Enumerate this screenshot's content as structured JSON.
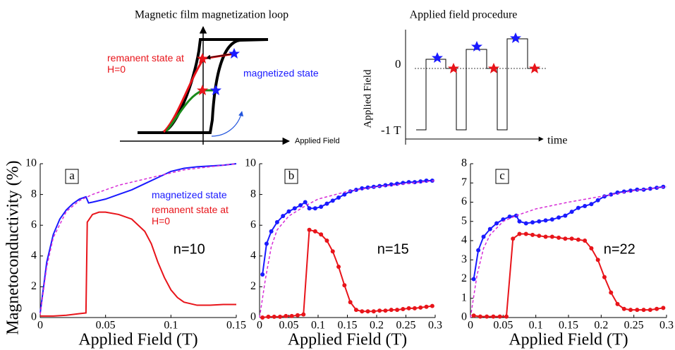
{
  "diagrams": {
    "loop": {
      "title": "Magnetic film magnetization loop",
      "remanent": "remanent state at H=0",
      "magnetized": "magnetized state",
      "x_axis": "Applied Field"
    },
    "procedure": {
      "title": "Applied field procedure",
      "zero": "0",
      "minus": "-1 T",
      "y_axis": "Applied Field",
      "x_axis": "time"
    }
  },
  "chart_data": [
    {
      "type": "line",
      "label": "a",
      "annotation": "n=10",
      "xlabel": "Applied Field (T)",
      "ylabel": "Magnetoconductivity (%)",
      "xlim": [
        0,
        0.15
      ],
      "ylim": [
        0,
        10
      ],
      "xticks": [
        0,
        0.05,
        0.1,
        0.15
      ],
      "yticks": [
        0,
        2,
        4,
        6,
        8,
        10
      ],
      "series": [
        {
          "name": "magnetized state",
          "color": "#1a1aff",
          "x": [
            0,
            0.005,
            0.01,
            0.015,
            0.02,
            0.025,
            0.03,
            0.035,
            0.037,
            0.04,
            0.05,
            0.06,
            0.07,
            0.08,
            0.09,
            0.1,
            0.11,
            0.12,
            0.13,
            0.14,
            0.15
          ],
          "values": [
            0.3,
            3.6,
            5.4,
            6.4,
            7.0,
            7.4,
            7.7,
            7.85,
            7.45,
            7.5,
            7.7,
            8.0,
            8.3,
            8.7,
            9.1,
            9.5,
            9.7,
            9.8,
            9.85,
            9.9,
            10.0
          ]
        },
        {
          "name": "remanent state at H=0",
          "color": "#e8141a",
          "x": [
            0,
            0.01,
            0.02,
            0.03,
            0.035,
            0.036,
            0.04,
            0.045,
            0.05,
            0.06,
            0.07,
            0.08,
            0.085,
            0.09,
            0.095,
            0.1,
            0.105,
            0.11,
            0.12,
            0.13,
            0.14,
            0.15
          ],
          "values": [
            0.1,
            0.1,
            0.15,
            0.25,
            0.3,
            6.2,
            6.7,
            6.85,
            6.85,
            6.7,
            6.4,
            5.6,
            4.8,
            3.6,
            2.6,
            1.8,
            1.3,
            1.0,
            0.8,
            0.8,
            0.85,
            0.85
          ]
        },
        {
          "color": "#d62bd6",
          "dash": true,
          "x": [
            0,
            0.005,
            0.01,
            0.02,
            0.03,
            0.04,
            0.05,
            0.06,
            0.07,
            0.08,
            0.09,
            0.1,
            0.11,
            0.12,
            0.13,
            0.14,
            0.15
          ],
          "values": [
            0.2,
            3.3,
            5.2,
            6.9,
            7.6,
            8.0,
            8.3,
            8.6,
            8.8,
            9.0,
            9.2,
            9.4,
            9.6,
            9.7,
            9.8,
            9.9,
            10.0
          ]
        }
      ]
    },
    {
      "type": "line",
      "label": "b",
      "annotation": "n=15",
      "xlabel": "Applied Field (T)",
      "xlim": [
        0,
        0.3
      ],
      "ylim": [
        0,
        10
      ],
      "xticks": [
        0,
        0.05,
        0.1,
        0.15,
        0.2,
        0.25,
        0.3
      ],
      "yticks": [
        0,
        2,
        4,
        6,
        8,
        10
      ],
      "series": [
        {
          "color": "#1a1aff",
          "markers": true,
          "x": [
            0.005,
            0.012,
            0.02,
            0.03,
            0.04,
            0.05,
            0.06,
            0.07,
            0.078,
            0.085,
            0.095,
            0.105,
            0.115,
            0.125,
            0.135,
            0.145,
            0.155,
            0.165,
            0.175,
            0.185,
            0.195,
            0.205,
            0.215,
            0.225,
            0.235,
            0.245,
            0.255,
            0.265,
            0.275,
            0.285,
            0.295
          ],
          "values": [
            2.8,
            4.8,
            5.6,
            6.2,
            6.6,
            6.9,
            7.1,
            7.3,
            7.5,
            7.1,
            7.1,
            7.2,
            7.4,
            7.6,
            7.8,
            8.0,
            8.2,
            8.3,
            8.4,
            8.45,
            8.5,
            8.55,
            8.6,
            8.65,
            8.7,
            8.75,
            8.8,
            8.8,
            8.85,
            8.9,
            8.9
          ]
        },
        {
          "color": "#e8141a",
          "markers": true,
          "x": [
            0.005,
            0.015,
            0.025,
            0.035,
            0.045,
            0.055,
            0.065,
            0.075,
            0.085,
            0.095,
            0.105,
            0.115,
            0.125,
            0.135,
            0.145,
            0.155,
            0.165,
            0.175,
            0.185,
            0.195,
            0.205,
            0.215,
            0.225,
            0.235,
            0.245,
            0.255,
            0.265,
            0.275,
            0.285,
            0.295
          ],
          "values": [
            0,
            0.05,
            0.05,
            0.05,
            0.1,
            0.1,
            0.15,
            0.2,
            5.7,
            5.6,
            5.4,
            5.0,
            4.3,
            3.3,
            2.1,
            1.0,
            0.5,
            0.4,
            0.4,
            0.4,
            0.45,
            0.45,
            0.5,
            0.5,
            0.55,
            0.6,
            0.6,
            0.65,
            0.7,
            0.75
          ]
        },
        {
          "color": "#d62bd6",
          "dash": true,
          "x": [
            0,
            0.01,
            0.02,
            0.03,
            0.05,
            0.08,
            0.1,
            0.15,
            0.2,
            0.25,
            0.3
          ],
          "values": [
            0,
            2.5,
            4.6,
            5.7,
            6.6,
            7.3,
            7.7,
            8.2,
            8.5,
            8.7,
            8.9
          ]
        }
      ]
    },
    {
      "type": "line",
      "label": "c",
      "annotation": "n=22",
      "xlabel": "Applied Field (T)",
      "xlim": [
        0,
        0.3
      ],
      "ylim": [
        0,
        8
      ],
      "xticks": [
        0,
        0.05,
        0.1,
        0.15,
        0.2,
        0.25,
        0.3
      ],
      "yticks": [
        0,
        1,
        2,
        3,
        4,
        5,
        6,
        7,
        8
      ],
      "series": [
        {
          "color": "#1a1aff",
          "markers": true,
          "x": [
            0.005,
            0.012,
            0.02,
            0.03,
            0.04,
            0.05,
            0.06,
            0.07,
            0.075,
            0.085,
            0.095,
            0.105,
            0.115,
            0.125,
            0.135,
            0.145,
            0.155,
            0.165,
            0.175,
            0.185,
            0.195,
            0.205,
            0.215,
            0.225,
            0.235,
            0.245,
            0.255,
            0.265,
            0.275,
            0.285,
            0.295
          ],
          "values": [
            2.0,
            3.5,
            4.2,
            4.6,
            4.9,
            5.1,
            5.25,
            5.3,
            5.0,
            4.9,
            4.95,
            5.0,
            5.05,
            5.1,
            5.2,
            5.3,
            5.5,
            5.7,
            5.8,
            5.9,
            6.1,
            6.3,
            6.4,
            6.5,
            6.55,
            6.6,
            6.65,
            6.65,
            6.7,
            6.75,
            6.8
          ]
        },
        {
          "color": "#e8141a",
          "markers": true,
          "x": [
            0.005,
            0.015,
            0.025,
            0.035,
            0.045,
            0.055,
            0.065,
            0.075,
            0.085,
            0.095,
            0.105,
            0.115,
            0.125,
            0.135,
            0.145,
            0.155,
            0.165,
            0.175,
            0.185,
            0.195,
            0.205,
            0.215,
            0.225,
            0.235,
            0.245,
            0.255,
            0.265,
            0.275,
            0.285,
            0.295
          ],
          "values": [
            0.1,
            0.05,
            0.05,
            0.05,
            0.05,
            0.05,
            4.1,
            4.35,
            4.35,
            4.3,
            4.25,
            4.2,
            4.2,
            4.15,
            4.1,
            4.1,
            4.05,
            4.0,
            3.6,
            3.0,
            2.1,
            1.3,
            0.7,
            0.45,
            0.4,
            0.4,
            0.4,
            0.4,
            0.45,
            0.5
          ]
        },
        {
          "color": "#d62bd6",
          "dash": true,
          "x": [
            0,
            0.01,
            0.02,
            0.03,
            0.05,
            0.07,
            0.1,
            0.15,
            0.2,
            0.25,
            0.3
          ],
          "values": [
            0,
            2.2,
            3.6,
            4.3,
            5.0,
            5.3,
            5.65,
            6.0,
            6.3,
            6.6,
            6.8
          ]
        }
      ]
    }
  ]
}
